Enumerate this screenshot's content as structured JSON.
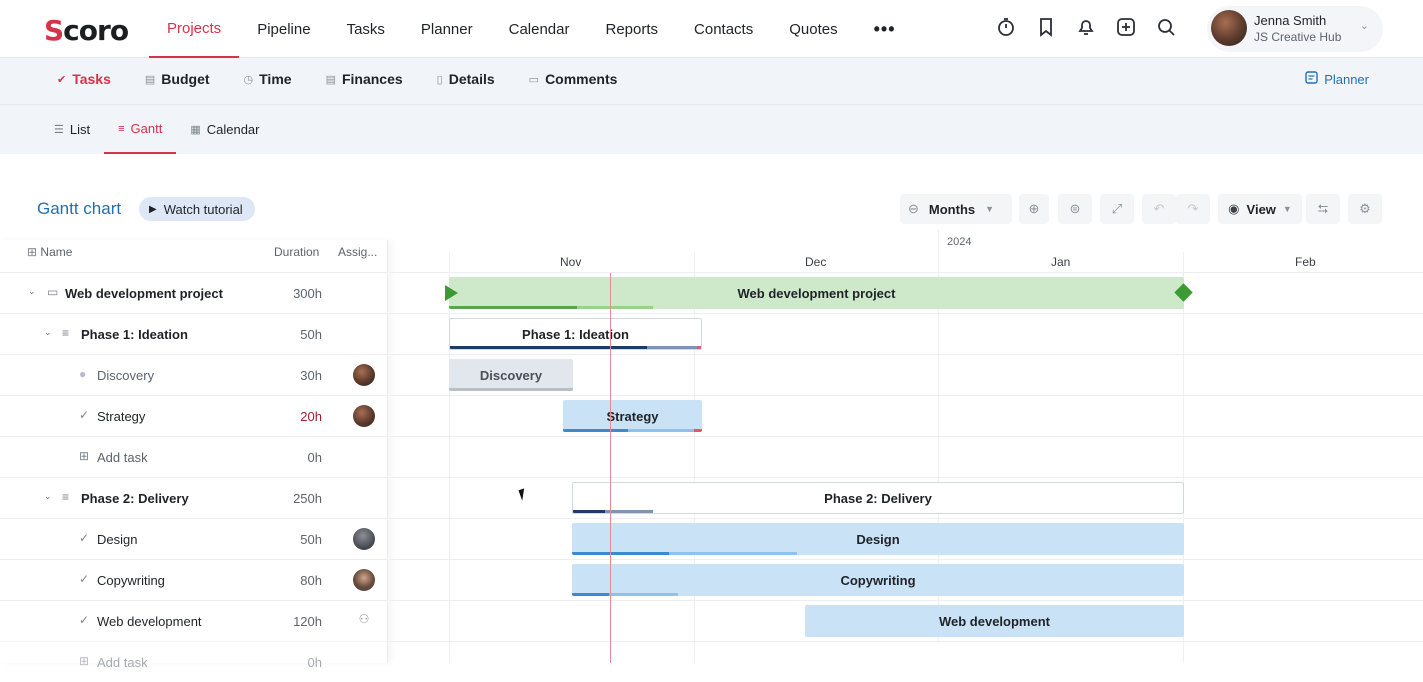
{
  "app": {
    "logo": "Scoro"
  },
  "nav": {
    "items": [
      "Projects",
      "Pipeline",
      "Tasks",
      "Planner",
      "Calendar",
      "Reports",
      "Contacts",
      "Quotes"
    ],
    "more": "•••"
  },
  "user": {
    "name": "Jenna Smith",
    "org": "JS Creative Hub"
  },
  "subnav": {
    "items": [
      "Tasks",
      "Budget",
      "Time",
      "Finances",
      "Details",
      "Comments"
    ],
    "planner_link": "Planner"
  },
  "viewtabs": {
    "items": [
      "List",
      "Gantt",
      "Calendar"
    ]
  },
  "gantt": {
    "title": "Gantt chart",
    "tutorial": "Watch tutorial",
    "scale": "Months",
    "view": "View",
    "columns": {
      "name": "Name",
      "duration": "Duration",
      "assignee": "Assig..."
    },
    "year": "2024",
    "months": [
      "Nov",
      "Dec",
      "Jan",
      "Feb"
    ],
    "rows": [
      {
        "name": "Web development project",
        "duration": "300h"
      },
      {
        "name": "Phase 1: Ideation",
        "duration": "50h"
      },
      {
        "name": "Discovery",
        "duration": "30h"
      },
      {
        "name": "Strategy",
        "duration": "20h"
      },
      {
        "name": "Add task",
        "duration": "0h"
      },
      {
        "name": "Phase 2: Delivery",
        "duration": "250h"
      },
      {
        "name": "Design",
        "duration": "50h"
      },
      {
        "name": "Copywriting",
        "duration": "80h"
      },
      {
        "name": "Web development",
        "duration": "120h"
      },
      {
        "name": "Add task",
        "duration": "0h"
      }
    ],
    "bars": {
      "project": "Web development project",
      "phase1": "Phase 1: Ideation",
      "discovery": "Discovery",
      "strategy": "Strategy",
      "phase2": "Phase 2: Delivery",
      "design": "Design",
      "copywriting": "Copywriting",
      "webdev": "Web development"
    }
  },
  "colors": {
    "accent": "#d6324a",
    "link": "#1f6fb5",
    "project_bar": "#cde9c9",
    "task_bar": "#c9e2f6",
    "milestone": "#3b9a34"
  }
}
